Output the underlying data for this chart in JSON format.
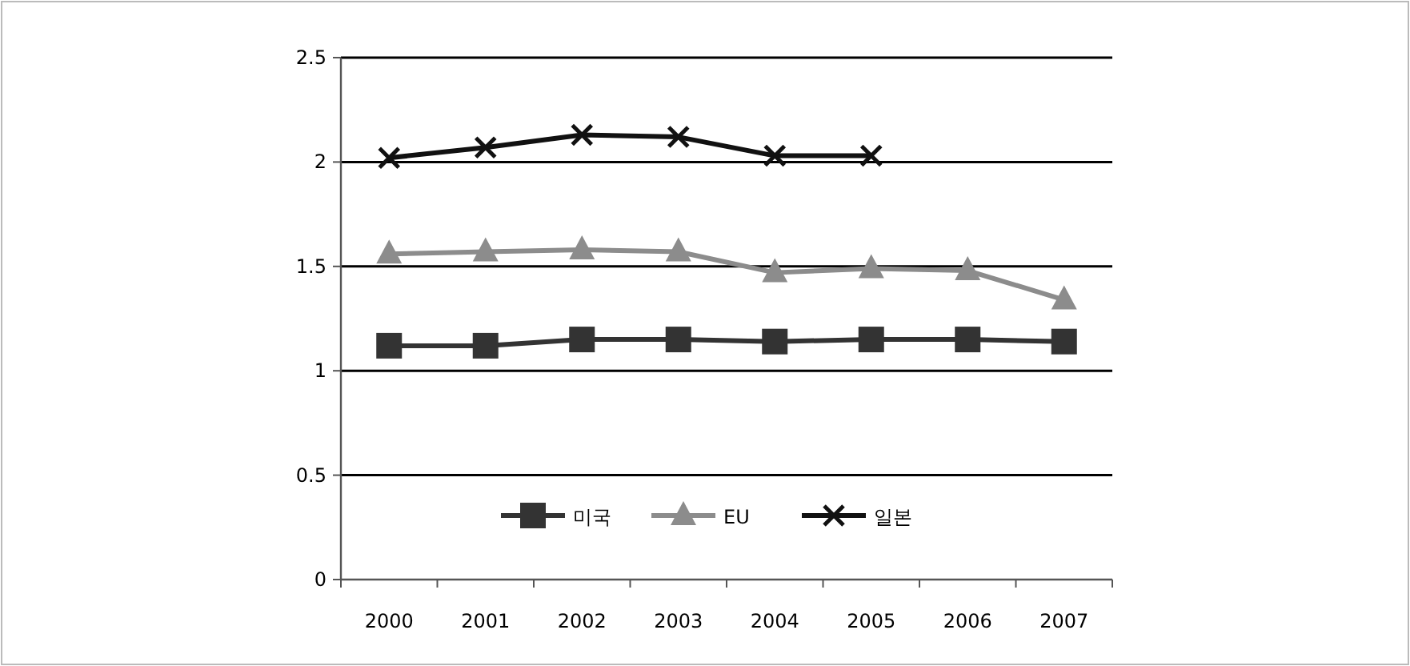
{
  "chart_data": {
    "type": "line",
    "categories": [
      "2000",
      "2001",
      "2002",
      "2003",
      "2004",
      "2005",
      "2006",
      "2007"
    ],
    "series": [
      {
        "name": "미국",
        "color": "#333333",
        "marker": "square",
        "values": [
          1.12,
          1.12,
          1.15,
          1.15,
          1.14,
          1.15,
          1.15,
          1.14
        ]
      },
      {
        "name": "EU",
        "color": "#8c8c8c",
        "marker": "triangle",
        "values": [
          1.56,
          1.57,
          1.58,
          1.57,
          1.47,
          1.49,
          1.48,
          1.34
        ]
      },
      {
        "name": "일본",
        "color": "#111111",
        "marker": "cross",
        "values": [
          2.02,
          2.07,
          2.13,
          2.12,
          2.03,
          2.03,
          null,
          null
        ]
      }
    ],
    "ylim": [
      0,
      2.5
    ],
    "yticks": [
      0,
      0.5,
      1,
      1.5,
      2,
      2.5
    ],
    "grid": "y",
    "legend": "bottom"
  }
}
